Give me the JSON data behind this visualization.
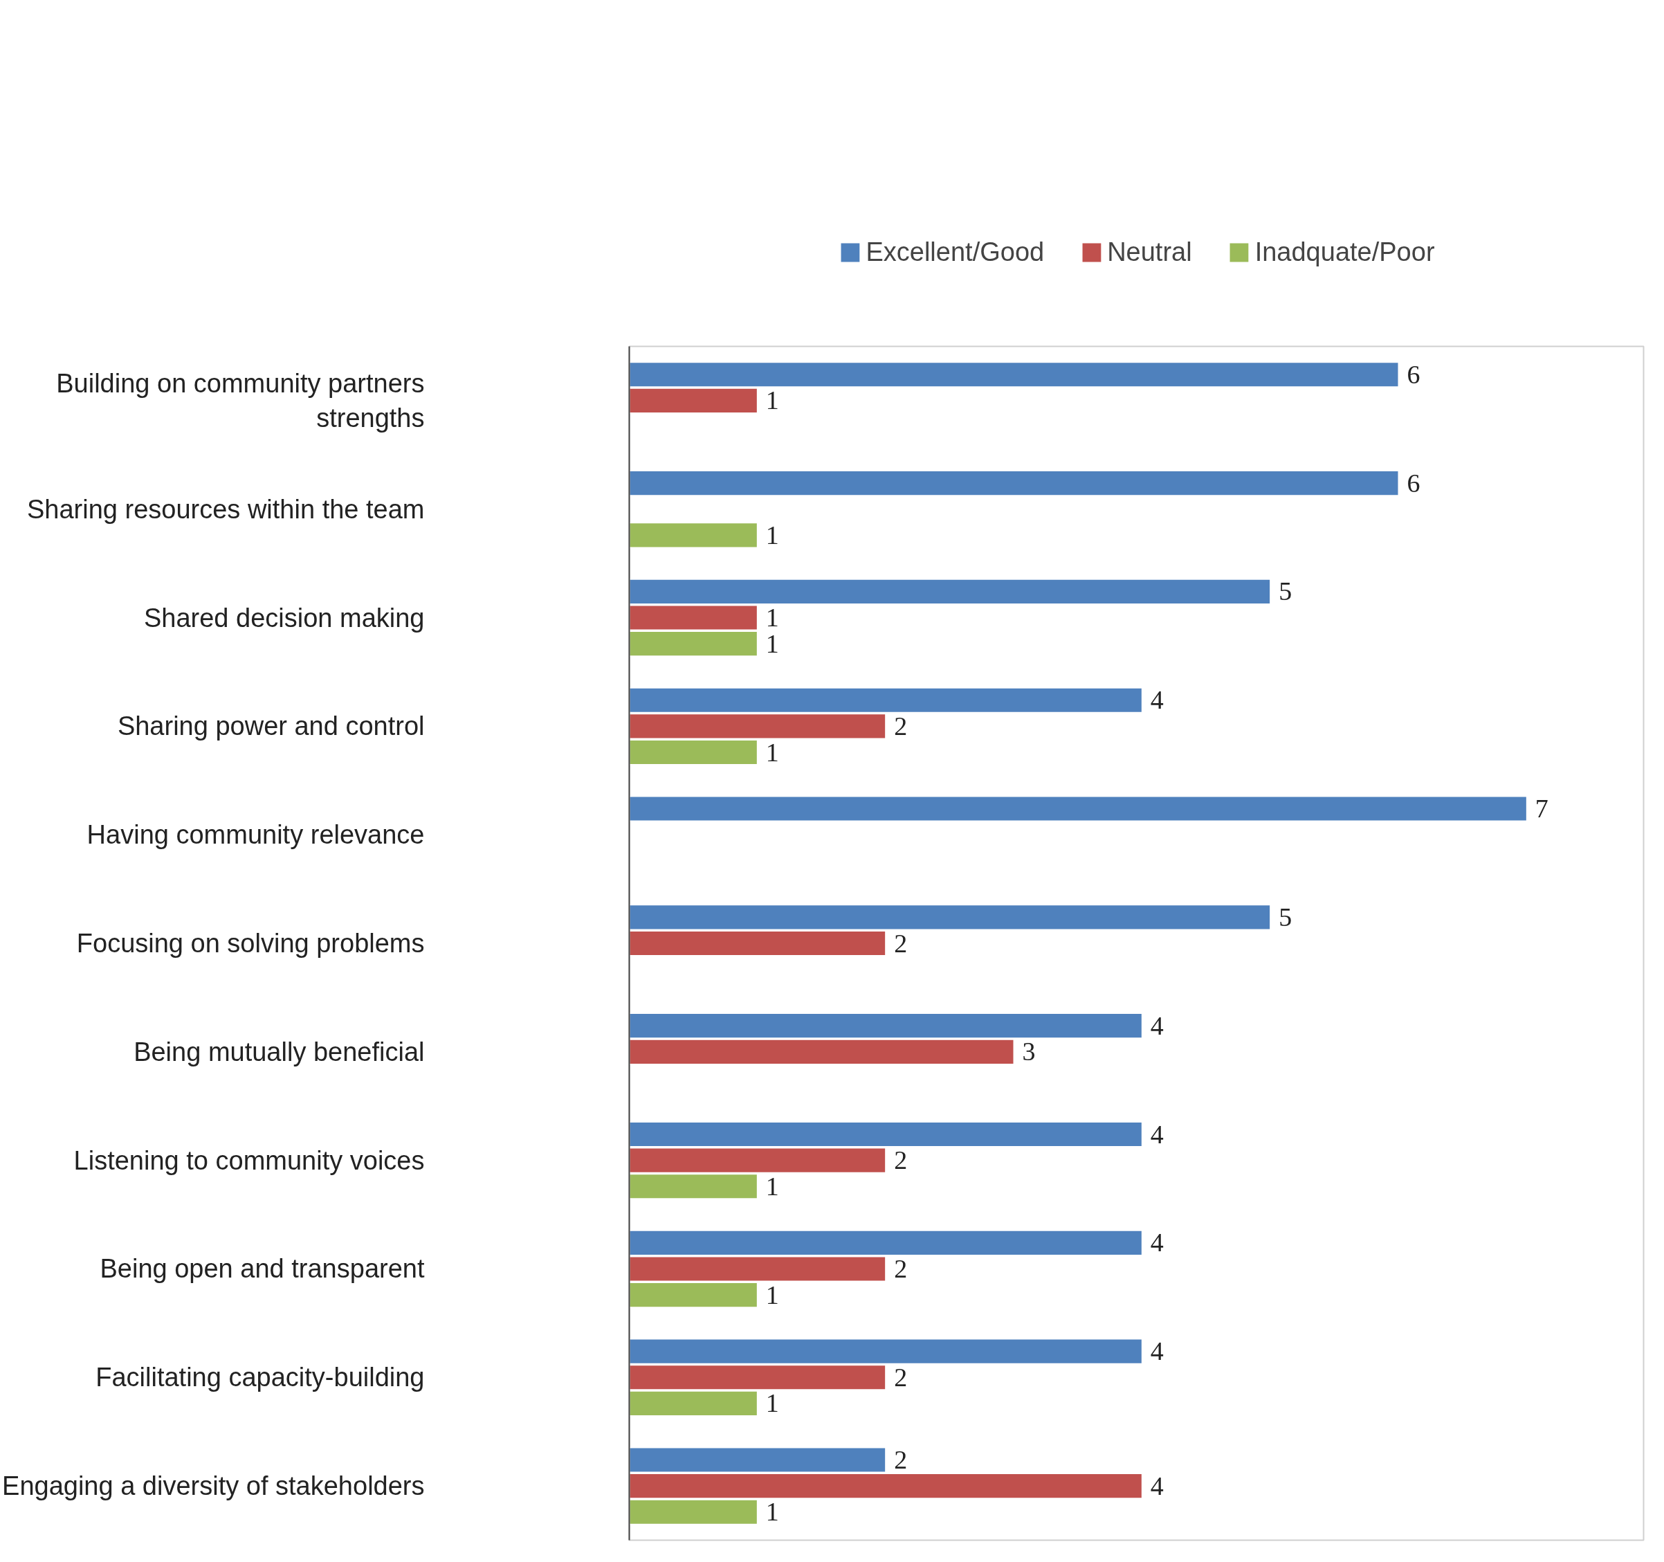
{
  "chart_data": {
    "type": "bar",
    "orientation": "horizontal",
    "data_labels": true,
    "grid": false,
    "legend": "top",
    "categories": [
      "Building on community partners strengths",
      "Sharing resources within the team",
      "Shared decision making",
      "Sharing power and control",
      "Having community relevance",
      "Focusing on solving problems",
      "Being mutually beneficial",
      "Listening to community voices",
      "Being open and transparent",
      "Facilitating capacity-building",
      "Engaging a diversity of stakeholders"
    ],
    "series": [
      {
        "name": "Excellent/Good",
        "color": "#4f81bd",
        "values": [
          6,
          6,
          5,
          4,
          7,
          5,
          4,
          4,
          4,
          4,
          2
        ]
      },
      {
        "name": "Neutral",
        "color": "#c0504d",
        "values": [
          1,
          null,
          1,
          2,
          null,
          2,
          3,
          2,
          2,
          2,
          4
        ]
      },
      {
        "name": "Inadquate/Poor",
        "color": "#9bbb59",
        "values": [
          null,
          1,
          1,
          1,
          null,
          null,
          null,
          1,
          1,
          1,
          1
        ]
      }
    ]
  }
}
